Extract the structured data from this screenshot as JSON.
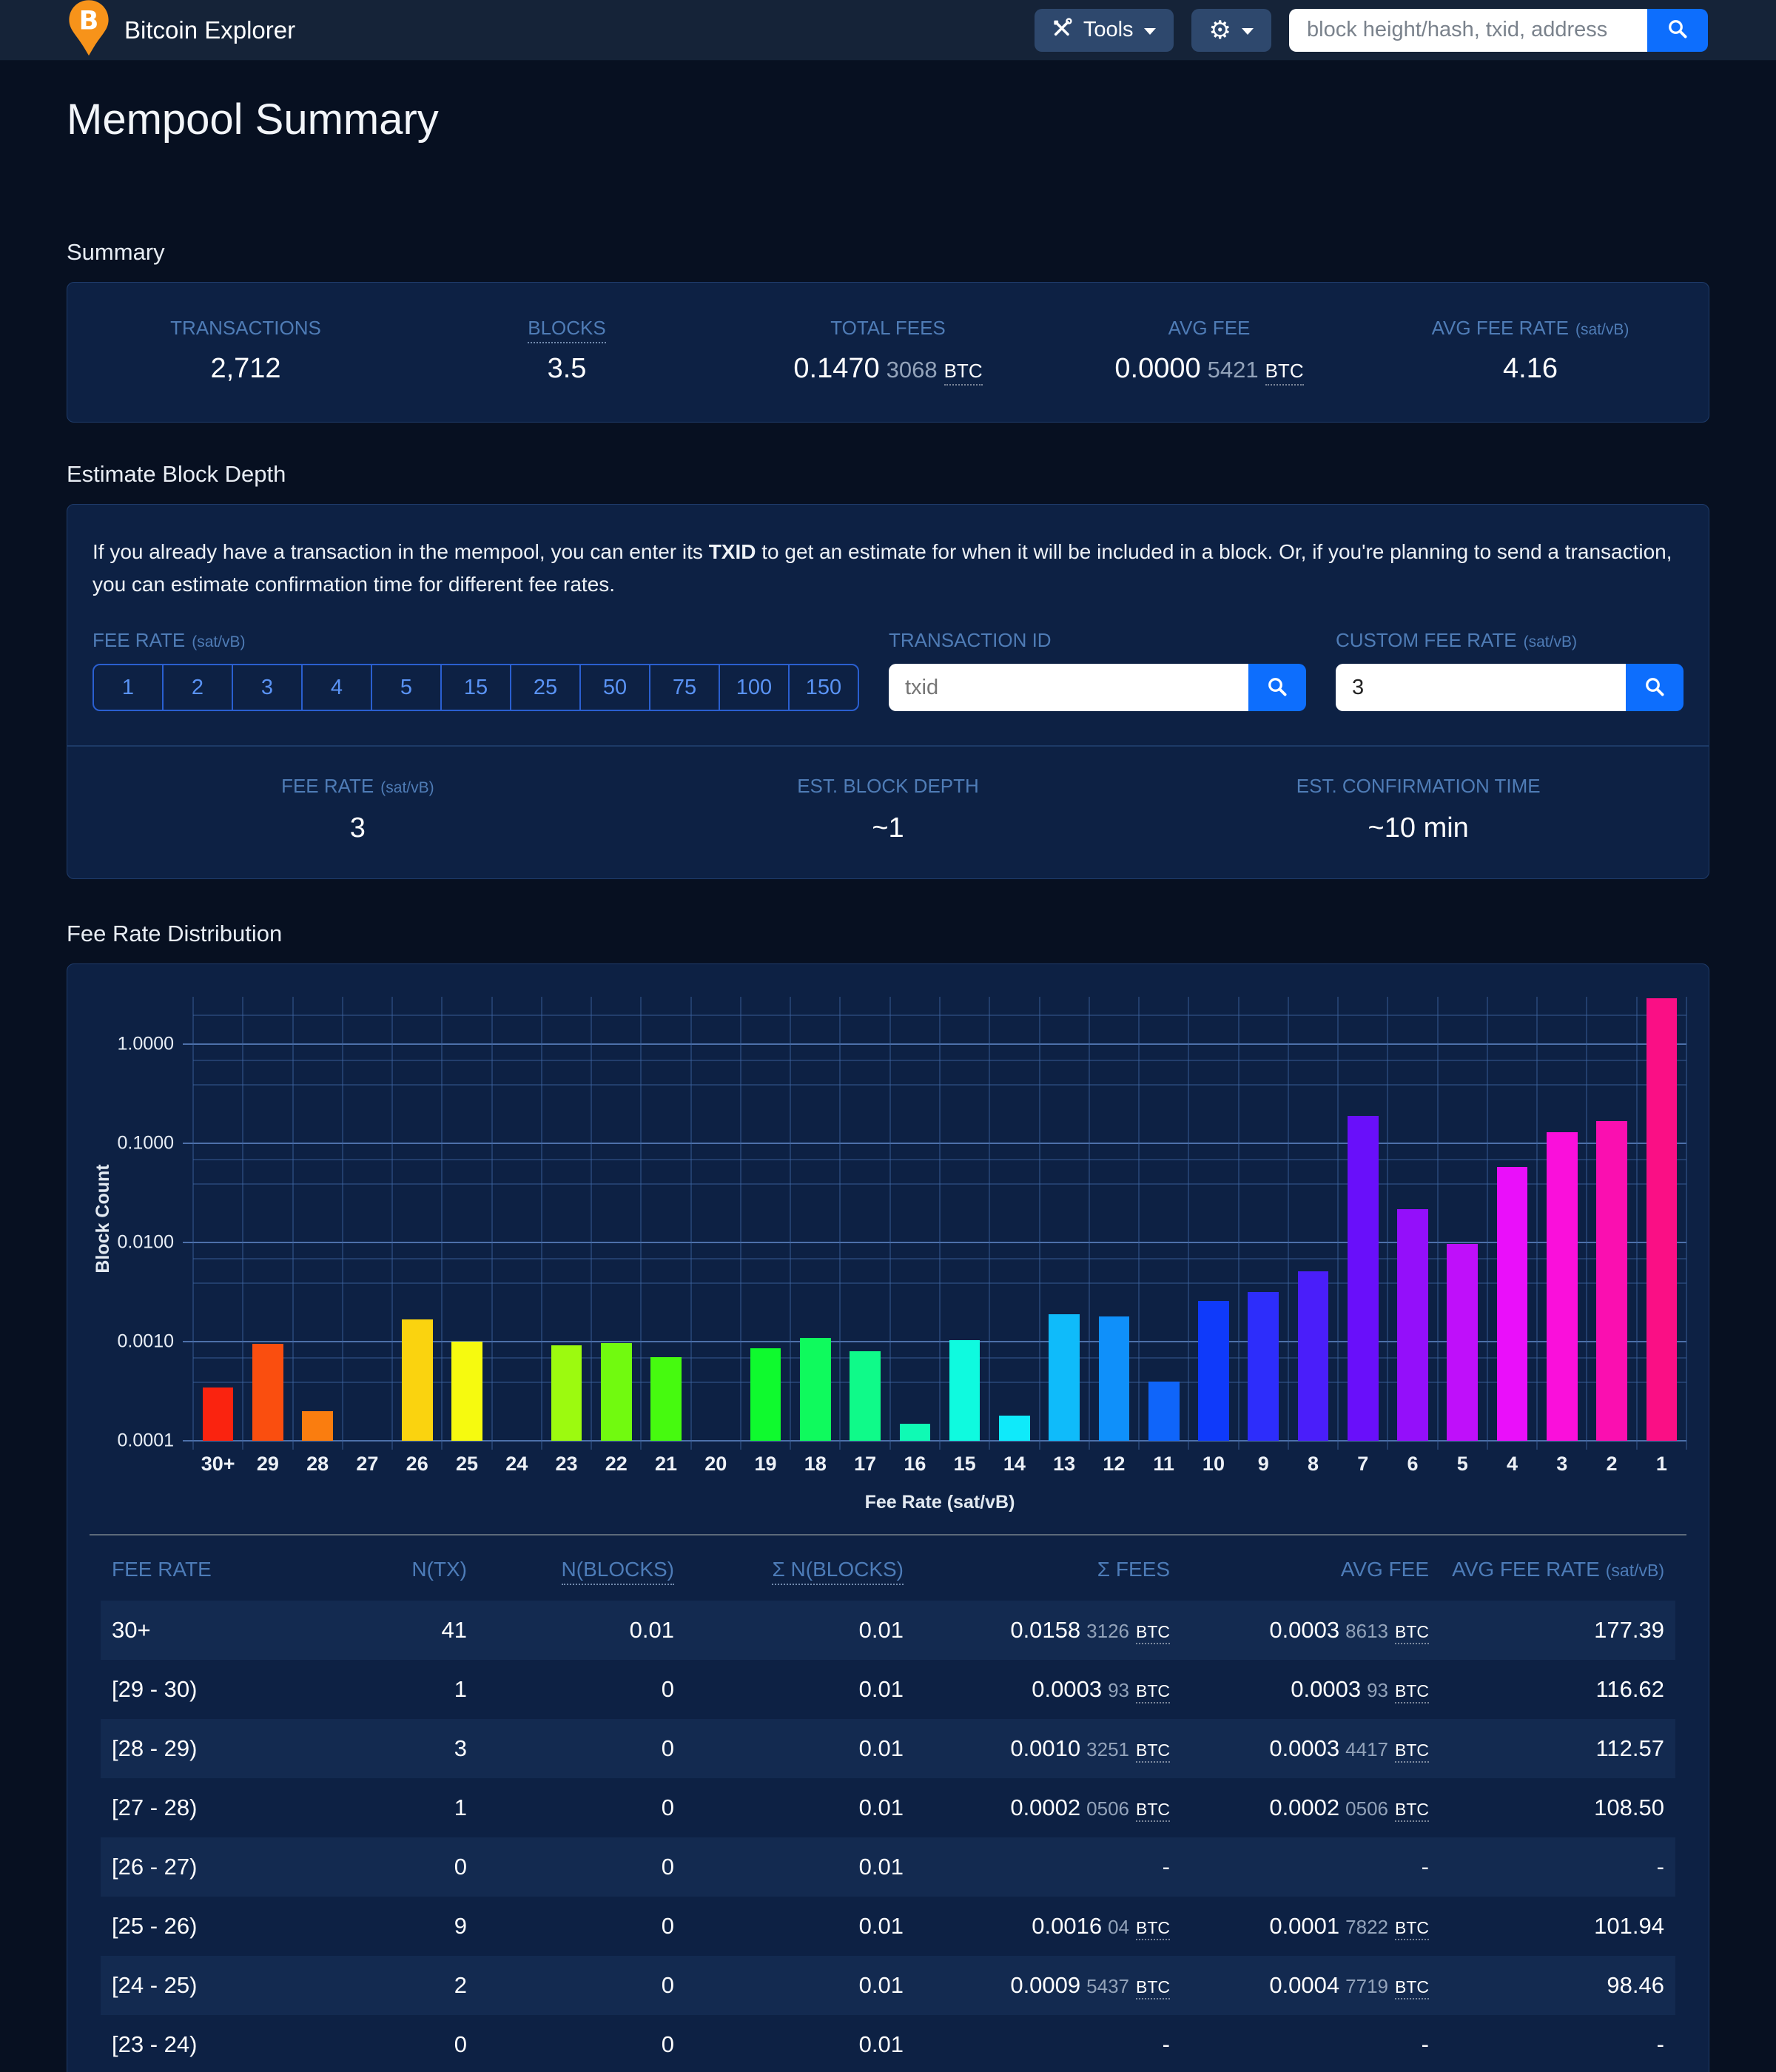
{
  "navbar": {
    "brand": "Bitcoin Explorer",
    "tools_label": "Tools",
    "search_placeholder": "block height/hash, txid, address"
  },
  "page": {
    "title": "Mempool Summary"
  },
  "summary": {
    "heading": "Summary",
    "stats": [
      {
        "label": "TRANSACTIONS",
        "suffix": "",
        "value": "2,712",
        "dim": "",
        "unit": ""
      },
      {
        "label": "BLOCKS",
        "suffix": "",
        "value": "3.5",
        "dim": "",
        "unit": ""
      },
      {
        "label": "TOTAL FEES",
        "suffix": "",
        "value": "0.1470",
        "dim": "3068",
        "unit": "BTC"
      },
      {
        "label": "AVG FEE",
        "suffix": "",
        "value": "0.0000",
        "dim": "5421",
        "unit": "BTC"
      },
      {
        "label": "AVG FEE RATE",
        "suffix": "(sat/vB)",
        "value": "4.16",
        "dim": "",
        "unit": ""
      }
    ]
  },
  "estimate": {
    "heading": "Estimate Block Depth",
    "description_parts": [
      "If you already have a transaction in the mempool, you can enter its ",
      "TXID",
      " to get an estimate for when it will be included in a block. Or, if you're planning to send a transaction, you can estimate confirmation time for different fee rates."
    ],
    "fee_rate_label": "FEE RATE",
    "fee_rate_suffix": "(sat/vB)",
    "fee_rate_options": [
      "1",
      "2",
      "3",
      "4",
      "5",
      "15",
      "25",
      "50",
      "75",
      "100",
      "150"
    ],
    "txid_label": "TRANSACTION ID",
    "txid_placeholder": "txid",
    "custom_label": "CUSTOM FEE RATE",
    "custom_suffix": "(sat/vB)",
    "custom_value": "3",
    "results": [
      {
        "label": "FEE RATE",
        "suffix": "(sat/vB)",
        "value": "3"
      },
      {
        "label": "EST. BLOCK DEPTH",
        "suffix": "",
        "value": "~1"
      },
      {
        "label": "EST. CONFIRMATION TIME",
        "suffix": "",
        "value": "~10 min"
      }
    ]
  },
  "chart_section": {
    "heading": "Fee Rate Distribution"
  },
  "chart_data": {
    "type": "bar",
    "title": "Fee Rate Distribution",
    "xlabel": "Fee Rate (sat/vB)",
    "ylabel": "Block Count",
    "y_scale": "log",
    "grid": true,
    "legend": false,
    "ylim": [
      0.0001,
      3.0
    ],
    "y_ticks": [
      "1.0000",
      "0.1000",
      "0.0100",
      "0.0010",
      "0.0001"
    ],
    "categories": [
      "30+",
      "29",
      "28",
      "27",
      "26",
      "25",
      "24",
      "23",
      "22",
      "21",
      "20",
      "19",
      "18",
      "17",
      "16",
      "15",
      "14",
      "13",
      "12",
      "11",
      "10",
      "9",
      "8",
      "7",
      "6",
      "5",
      "4",
      "3",
      "2",
      "1"
    ],
    "values": [
      0.00035,
      0.00095,
      0.0002,
      0,
      0.0017,
      0.001,
      0,
      0.00092,
      0.00097,
      0.0007,
      0,
      0.00087,
      0.0011,
      0.0008,
      0.00015,
      0.00105,
      0.00018,
      0.0019,
      0.0018,
      0.0004,
      0.0026,
      0.0032,
      0.0052,
      0.19,
      0.022,
      0.0098,
      0.058,
      0.13,
      0.17,
      2.9
    ],
    "colors": [
      "hsl(5, 96%, 52%)",
      "hsl(16, 96%, 52%)",
      "hsl(28, 96%, 52%)",
      "hsl(39, 96%, 52%)",
      "hsl(50, 96%, 52%)",
      "hsl(61, 96%, 52%)",
      "hsl(72, 96%, 52%)",
      "hsl(84, 96%, 52%)",
      "hsl(95, 96%, 52%)",
      "hsl(106, 96%, 52%)",
      "hsl(117, 96%, 52%)",
      "hsl(128, 96%, 52%)",
      "hsl(140, 96%, 52%)",
      "hsl(151, 96%, 52%)",
      "hsl(162, 96%, 52%)",
      "hsl(173, 96%, 52%)",
      "hsl(184, 96%, 52%)",
      "hsl(196, 96%, 52%)",
      "hsl(207, 96%, 52%)",
      "hsl(218, 96%, 52%)",
      "hsl(229, 96%, 52%)",
      "hsl(240, 96%, 58%)",
      "hsl(252, 96%, 55%)",
      "hsl(263, 96%, 52%)",
      "hsl(274, 96%, 52%)",
      "hsl(285, 96%, 52%)",
      "hsl(296, 96%, 52%)",
      "hsl(308, 96%, 52%)",
      "hsl(319, 96%, 52%)",
      "hsl(330, 96%, 52%)"
    ]
  },
  "table": {
    "headers": [
      {
        "label": "FEE RATE",
        "suffix": ""
      },
      {
        "label": "N(TX)",
        "suffix": ""
      },
      {
        "label": "N(BLOCKS)",
        "suffix": ""
      },
      {
        "label": "Σ N(BLOCKS)",
        "suffix": ""
      },
      {
        "label": "Σ FEES",
        "suffix": ""
      },
      {
        "label": "AVG FEE",
        "suffix": ""
      },
      {
        "label": "AVG FEE RATE",
        "suffix": "(sat/vB)"
      }
    ],
    "rows": [
      {
        "range": "30+",
        "n_tx": "41",
        "n_blocks": "0.01",
        "sum_blocks": "0.01",
        "sum_fees": {
          "main": "0.0158",
          "dim": "3126",
          "unit": "BTC"
        },
        "avg_fee": {
          "main": "0.0003",
          "dim": "8613",
          "unit": "BTC"
        },
        "rate": "177.39"
      },
      {
        "range": "[29 - 30)",
        "n_tx": "1",
        "n_blocks": "0",
        "sum_blocks": "0.01",
        "sum_fees": {
          "main": "0.0003",
          "dim": "93",
          "unit": "BTC"
        },
        "avg_fee": {
          "main": "0.0003",
          "dim": "93",
          "unit": "BTC"
        },
        "rate": "116.62"
      },
      {
        "range": "[28 - 29)",
        "n_tx": "3",
        "n_blocks": "0",
        "sum_blocks": "0.01",
        "sum_fees": {
          "main": "0.0010",
          "dim": "3251",
          "unit": "BTC"
        },
        "avg_fee": {
          "main": "0.0003",
          "dim": "4417",
          "unit": "BTC"
        },
        "rate": "112.57"
      },
      {
        "range": "[27 - 28)",
        "n_tx": "1",
        "n_blocks": "0",
        "sum_blocks": "0.01",
        "sum_fees": {
          "main": "0.0002",
          "dim": "0506",
          "unit": "BTC"
        },
        "avg_fee": {
          "main": "0.0002",
          "dim": "0506",
          "unit": "BTC"
        },
        "rate": "108.50"
      },
      {
        "range": "[26 - 27)",
        "n_tx": "0",
        "n_blocks": "0",
        "sum_blocks": "0.01",
        "sum_fees": null,
        "avg_fee": null,
        "rate": "-"
      },
      {
        "range": "[25 - 26)",
        "n_tx": "9",
        "n_blocks": "0",
        "sum_blocks": "0.01",
        "sum_fees": {
          "main": "0.0016",
          "dim": "04",
          "unit": "BTC"
        },
        "avg_fee": {
          "main": "0.0001",
          "dim": "7822",
          "unit": "BTC"
        },
        "rate": "101.94"
      },
      {
        "range": "[24 - 25)",
        "n_tx": "2",
        "n_blocks": "0",
        "sum_blocks": "0.01",
        "sum_fees": {
          "main": "0.0009",
          "dim": "5437",
          "unit": "BTC"
        },
        "avg_fee": {
          "main": "0.0004",
          "dim": "7719",
          "unit": "BTC"
        },
        "rate": "98.46"
      },
      {
        "range": "[23 - 24)",
        "n_tx": "0",
        "n_blocks": "0",
        "sum_blocks": "0.01",
        "sum_fees": null,
        "avg_fee": null,
        "rate": "-"
      }
    ]
  }
}
